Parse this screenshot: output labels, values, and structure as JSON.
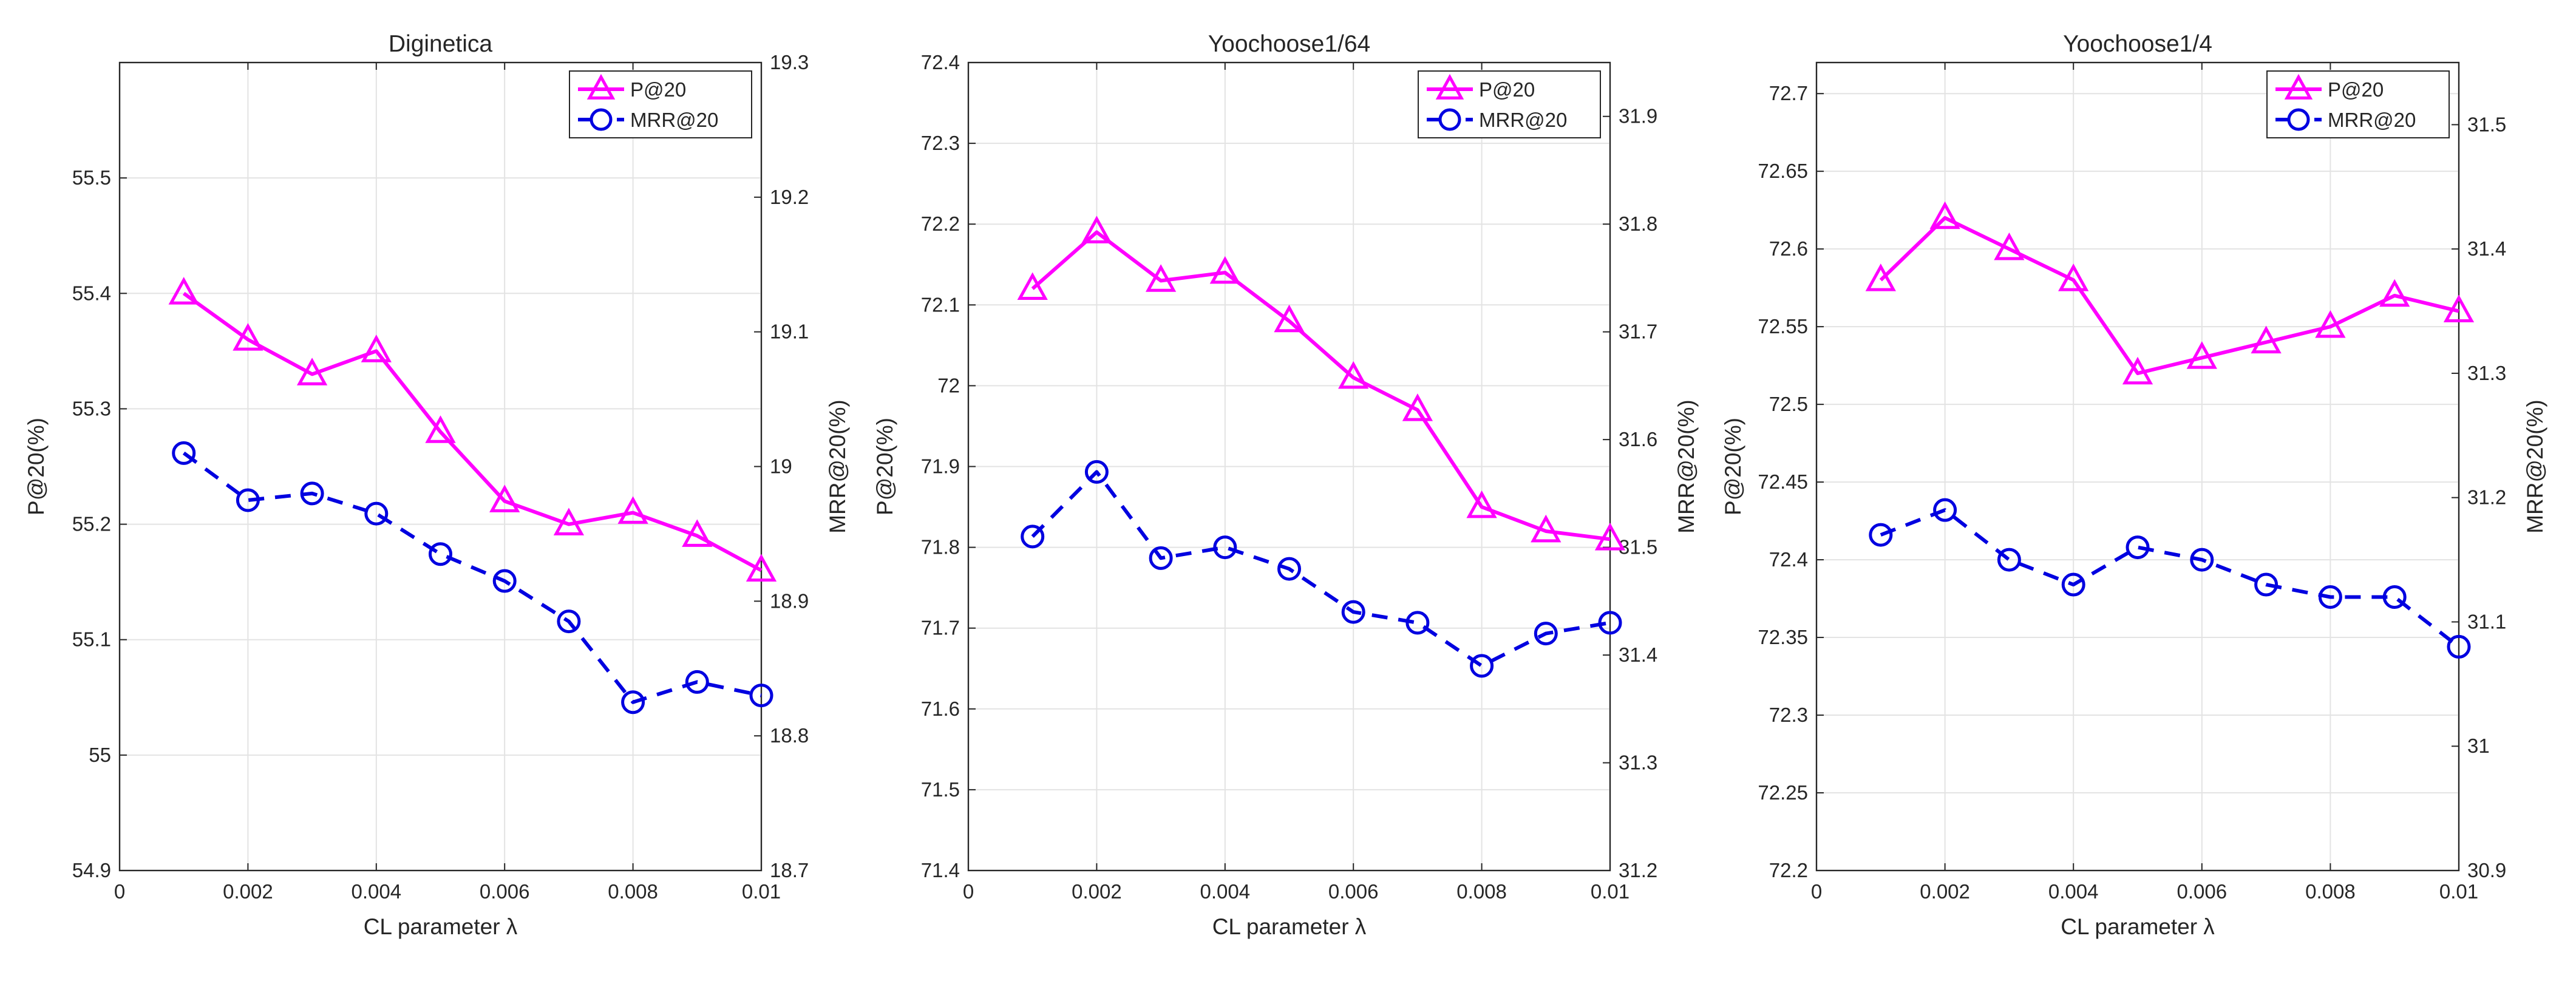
{
  "chart_data": [
    {
      "type": "line",
      "title": "Diginetica",
      "xlabel": "CL parameter λ",
      "ylabel_left": "P@20(%)",
      "ylabel_right": "MRR@20(%)",
      "x": [
        0.001,
        0.002,
        0.003,
        0.004,
        0.005,
        0.006,
        0.007,
        0.008,
        0.009,
        0.01
      ],
      "xlim": [
        0,
        0.01
      ],
      "xticks": [
        0,
        0.002,
        0.004,
        0.006,
        0.008,
        0.01
      ],
      "xtick_labels": [
        "0",
        "0.002",
        "0.004",
        "0.006",
        "0.008",
        "0.01"
      ],
      "ylim_left": [
        54.9,
        55.6
      ],
      "yticks_left": [
        54.9,
        55,
        55.1,
        55.2,
        55.3,
        55.4,
        55.5
      ],
      "ytick_labels_left": [
        "54.9",
        "55",
        "55.1",
        "55.2",
        "55.3",
        "55.4",
        "55.5"
      ],
      "ylim_right": [
        18.7,
        19.3
      ],
      "yticks_right": [
        18.7,
        18.8,
        18.9,
        19,
        19.1,
        19.2,
        19.3
      ],
      "ytick_labels_right": [
        "18.7",
        "18.8",
        "18.9",
        "19",
        "19.1",
        "19.2",
        "19.3"
      ],
      "grid": true,
      "legend_position": "top-right",
      "series": [
        {
          "name": "P@20",
          "axis": "left",
          "color": "#ff00ff",
          "line": "solid",
          "marker": "triangle",
          "values": [
            55.4,
            55.36,
            55.33,
            55.35,
            55.28,
            55.22,
            55.2,
            55.21,
            55.19,
            55.16
          ]
        },
        {
          "name": "MRR@20",
          "axis": "right",
          "color": "#0000e0",
          "line": "dashed",
          "marker": "circle",
          "values": [
            19.01,
            18.975,
            18.98,
            18.965,
            18.935,
            18.915,
            18.885,
            18.825,
            18.84,
            18.83
          ]
        }
      ]
    },
    {
      "type": "line",
      "title": "Yoochoose1/64",
      "xlabel": "CL parameter λ",
      "ylabel_left": "P@20(%)",
      "ylabel_right": "MRR@20(%)",
      "x": [
        0.001,
        0.002,
        0.003,
        0.004,
        0.005,
        0.006,
        0.007,
        0.008,
        0.009,
        0.01
      ],
      "xlim": [
        0,
        0.01
      ],
      "xticks": [
        0,
        0.002,
        0.004,
        0.006,
        0.008,
        0.01
      ],
      "xtick_labels": [
        "0",
        "0.002",
        "0.004",
        "0.006",
        "0.008",
        "0.01"
      ],
      "ylim_left": [
        71.4,
        72.4
      ],
      "yticks_left": [
        71.4,
        71.5,
        71.6,
        71.7,
        71.8,
        71.9,
        72,
        72.1,
        72.2,
        72.3,
        72.4
      ],
      "ytick_labels_left": [
        "71.4",
        "71.5",
        "71.6",
        "71.7",
        "71.8",
        "71.9",
        "72",
        "72.1",
        "72.2",
        "72.3",
        "72.4"
      ],
      "ylim_right": [
        31.2,
        31.95
      ],
      "yticks_right": [
        31.2,
        31.3,
        31.4,
        31.5,
        31.6,
        31.7,
        31.8,
        31.9
      ],
      "ytick_labels_right": [
        "31.2",
        "31.3",
        "31.4",
        "31.5",
        "31.6",
        "31.7",
        "31.8",
        "31.9"
      ],
      "grid": true,
      "legend_position": "top-right",
      "series": [
        {
          "name": "P@20",
          "axis": "left",
          "color": "#ff00ff",
          "line": "solid",
          "marker": "triangle",
          "values": [
            72.12,
            72.19,
            72.13,
            72.14,
            72.08,
            72.01,
            71.97,
            71.85,
            71.82,
            71.81
          ]
        },
        {
          "name": "MRR@20",
          "axis": "right",
          "color": "#0000e0",
          "line": "dashed",
          "marker": "circle",
          "values": [
            31.51,
            31.57,
            31.49,
            31.5,
            31.48,
            31.44,
            31.43,
            31.39,
            31.42,
            31.43
          ]
        }
      ]
    },
    {
      "type": "line",
      "title": "Yoochoose1/4",
      "xlabel": "CL parameter λ",
      "ylabel_left": "P@20(%)",
      "ylabel_right": "MRR@20(%)",
      "x": [
        0.001,
        0.002,
        0.003,
        0.004,
        0.005,
        0.006,
        0.007,
        0.008,
        0.009,
        0.01
      ],
      "xlim": [
        0,
        0.01
      ],
      "xticks": [
        0,
        0.002,
        0.004,
        0.006,
        0.008,
        0.01
      ],
      "xtick_labels": [
        "0",
        "0.002",
        "0.004",
        "0.006",
        "0.008",
        "0.01"
      ],
      "ylim_left": [
        72.2,
        72.72
      ],
      "yticks_left": [
        72.2,
        72.25,
        72.3,
        72.35,
        72.4,
        72.45,
        72.5,
        72.55,
        72.6,
        72.65,
        72.7
      ],
      "ytick_labels_left": [
        "72.2",
        "72.25",
        "72.3",
        "72.35",
        "72.4",
        "72.45",
        "72.5",
        "72.55",
        "72.6",
        "72.65",
        "72.7"
      ],
      "ylim_right": [
        30.9,
        31.55
      ],
      "yticks_right": [
        30.9,
        31,
        31.1,
        31.2,
        31.3,
        31.4,
        31.5
      ],
      "ytick_labels_right": [
        "30.9",
        "31",
        "31.1",
        "31.2",
        "31.3",
        "31.4",
        "31.5"
      ],
      "grid": true,
      "legend_position": "top-right",
      "series": [
        {
          "name": "P@20",
          "axis": "left",
          "color": "#ff00ff",
          "line": "solid",
          "marker": "triangle",
          "values": [
            72.58,
            72.62,
            72.6,
            72.58,
            72.52,
            72.53,
            72.54,
            72.55,
            72.57,
            72.56
          ]
        },
        {
          "name": "MRR@20",
          "axis": "right",
          "color": "#0000e0",
          "line": "dashed",
          "marker": "circle",
          "values": [
            31.17,
            31.19,
            31.15,
            31.13,
            31.16,
            31.15,
            31.13,
            31.12,
            31.12,
            31.08
          ]
        }
      ]
    }
  ]
}
